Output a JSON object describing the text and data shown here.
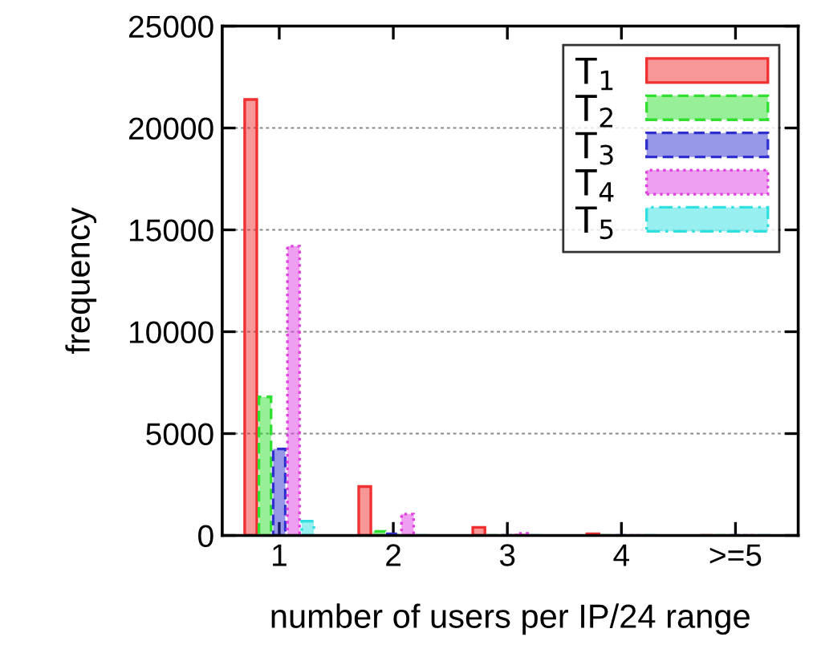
{
  "chart_data": {
    "type": "bar",
    "xlabel": "number of users per IP/24 range",
    "ylabel": "frequency",
    "categories": [
      "1",
      "2",
      "3",
      "4",
      ">=5"
    ],
    "series": [
      {
        "name": "T$_{1}$",
        "color": "#f03030",
        "line_style": "solid",
        "values": [
          21400,
          2400,
          400,
          80,
          0
        ]
      },
      {
        "name": "T$_{2}$",
        "color": "#30e030",
        "line_style": "dashed",
        "values": [
          6800,
          200,
          0,
          0,
          0
        ]
      },
      {
        "name": "T$_{3}$",
        "color": "#3030d0",
        "line_style": "dashed",
        "values": [
          4250,
          80,
          0,
          0,
          0
        ]
      },
      {
        "name": "T$_{4}$",
        "color": "#e040e0",
        "line_style": "dotted",
        "values": [
          14200,
          1050,
          100,
          0,
          0
        ]
      },
      {
        "name": "T$_{5}$",
        "color": "#30e0e0",
        "line_style": "dashdot",
        "values": [
          700,
          0,
          0,
          0,
          0
        ]
      }
    ],
    "ylim": [
      0,
      25000
    ],
    "yticks": [
      0,
      5000,
      10000,
      15000,
      20000,
      25000
    ],
    "grid": "y",
    "legend": "top right"
  }
}
